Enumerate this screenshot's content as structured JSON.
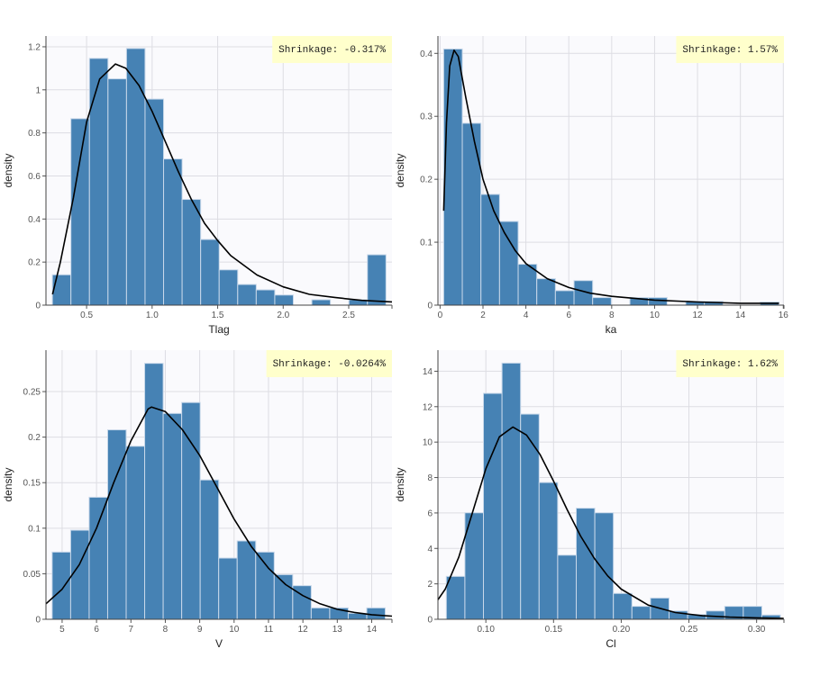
{
  "chart_data": [
    {
      "type": "bar",
      "xlabel": "Tlag",
      "ylabel": "density",
      "annotation": "Shrinkage: -0.317%",
      "xlim": [
        0.19,
        2.83
      ],
      "ylim": [
        0,
        1.25
      ],
      "xticks": [
        "0.5",
        "1.0",
        "1.5",
        "2.0",
        "2.5"
      ],
      "yticks": [
        "0",
        "0.2",
        "0.4",
        "0.6",
        "0.8",
        "1",
        "1.2"
      ],
      "grid": true,
      "bin_start": 0.239,
      "bin_width": 0.1414,
      "values": [
        0.141,
        0.866,
        1.146,
        1.051,
        1.192,
        0.957,
        0.679,
        0.491,
        0.305,
        0.164,
        0.096,
        0.071,
        0.047,
        0,
        0.025,
        0,
        0.025,
        0.234
      ],
      "curve": [
        [
          0.24,
          0.05
        ],
        [
          0.3,
          0.2
        ],
        [
          0.4,
          0.5
        ],
        [
          0.5,
          0.85
        ],
        [
          0.6,
          1.05
        ],
        [
          0.72,
          1.12
        ],
        [
          0.8,
          1.1
        ],
        [
          0.9,
          1.02
        ],
        [
          1.0,
          0.9
        ],
        [
          1.1,
          0.76
        ],
        [
          1.2,
          0.62
        ],
        [
          1.3,
          0.49
        ],
        [
          1.4,
          0.38
        ],
        [
          1.5,
          0.3
        ],
        [
          1.6,
          0.23
        ],
        [
          1.8,
          0.14
        ],
        [
          2.0,
          0.085
        ],
        [
          2.2,
          0.05
        ],
        [
          2.4,
          0.035
        ],
        [
          2.6,
          0.022
        ],
        [
          2.83,
          0.015
        ]
      ]
    },
    {
      "type": "bar",
      "xlabel": "ka",
      "ylabel": "density",
      "annotation": "Shrinkage: 1.57%",
      "xlim": [
        -0.1,
        16.03
      ],
      "ylim": [
        0,
        0.4276
      ],
      "xticks": [
        "0",
        "2",
        "4",
        "6",
        "8",
        "10",
        "12",
        "14",
        "16"
      ],
      "yticks": [
        "0",
        "0.1",
        "0.2",
        "0.3",
        "0.4"
      ],
      "grid": true,
      "bin_start": 0.168,
      "bin_width": 0.868,
      "values": [
        0.407,
        0.289,
        0.176,
        0.133,
        0.065,
        0.042,
        0.023,
        0.039,
        0.012,
        0,
        0.012,
        0.012,
        0,
        0.006,
        0.006,
        0,
        0,
        0.005
      ],
      "curve": [
        [
          0.17,
          0.15
        ],
        [
          0.3,
          0.29
        ],
        [
          0.45,
          0.38
        ],
        [
          0.65,
          0.405
        ],
        [
          0.85,
          0.395
        ],
        [
          1.2,
          0.33
        ],
        [
          1.6,
          0.26
        ],
        [
          2,
          0.2
        ],
        [
          2.5,
          0.15
        ],
        [
          3,
          0.115
        ],
        [
          3.5,
          0.087
        ],
        [
          4,
          0.066
        ],
        [
          5,
          0.042
        ],
        [
          6,
          0.028
        ],
        [
          7,
          0.019
        ],
        [
          8,
          0.014
        ],
        [
          10,
          0.008
        ],
        [
          12,
          0.005
        ],
        [
          14,
          0.003
        ],
        [
          15.8,
          0.003
        ]
      ]
    },
    {
      "type": "bar",
      "xlabel": "V",
      "ylabel": "density",
      "annotation": "Shrinkage: -0.0264%",
      "xlim": [
        4.53,
        14.59
      ],
      "ylim": [
        0,
        0.2955
      ],
      "xticks": [
        "5",
        "6",
        "7",
        "8",
        "9",
        "10",
        "11",
        "12",
        "13",
        "14"
      ],
      "yticks": [
        "0",
        "0.05",
        "0.1",
        "0.15",
        "0.2",
        "0.25"
      ],
      "grid": true,
      "bin_start": 4.71,
      "bin_width": 0.538,
      "values": [
        0.0738,
        0.0978,
        0.134,
        0.208,
        0.19,
        0.281,
        0.226,
        0.238,
        0.153,
        0.0672,
        0.086,
        0.0738,
        0.049,
        0.0369,
        0.0125,
        0.0125,
        0.0066,
        0.0125
      ],
      "curve": [
        [
          4.53,
          0.017
        ],
        [
          5,
          0.033
        ],
        [
          5.5,
          0.06
        ],
        [
          6,
          0.1
        ],
        [
          6.5,
          0.15
        ],
        [
          7,
          0.196
        ],
        [
          7.5,
          0.231
        ],
        [
          7.6,
          0.233
        ],
        [
          8,
          0.228
        ],
        [
          8.5,
          0.208
        ],
        [
          9,
          0.18
        ],
        [
          9.5,
          0.145
        ],
        [
          10,
          0.11
        ],
        [
          10.5,
          0.08
        ],
        [
          11,
          0.056
        ],
        [
          11.5,
          0.038
        ],
        [
          12,
          0.026
        ],
        [
          12.5,
          0.017
        ],
        [
          13,
          0.011
        ],
        [
          13.5,
          0.0075
        ],
        [
          14,
          0.005
        ],
        [
          14.59,
          0.0035
        ]
      ]
    },
    {
      "type": "bar",
      "xlabel": "Cl",
      "ylabel": "density",
      "annotation": "Shrinkage: 1.62%",
      "xlim": [
        0.0646,
        0.3202
      ],
      "ylim": [
        0,
        15.19
      ],
      "xticks": [
        "0.10",
        "0.15",
        "0.20",
        "0.25",
        "0.30"
      ],
      "yticks": [
        "0",
        "2",
        "4",
        "6",
        "8",
        "10",
        "12",
        "14"
      ],
      "grid": true,
      "bin_start": 0.0708,
      "bin_width": 0.01371,
      "values": [
        2.42,
        6.01,
        12.75,
        14.46,
        11.58,
        7.72,
        3.62,
        6.27,
        6.01,
        1.46,
        0.73,
        1.2,
        0.47,
        0.27,
        0.47,
        0.73,
        0.73,
        0.24
      ],
      "curve": [
        [
          0.0646,
          1.1
        ],
        [
          0.07,
          1.7
        ],
        [
          0.08,
          3.5
        ],
        [
          0.09,
          6.0
        ],
        [
          0.1,
          8.5
        ],
        [
          0.11,
          10.3
        ],
        [
          0.12,
          10.85
        ],
        [
          0.13,
          10.4
        ],
        [
          0.14,
          9.3
        ],
        [
          0.15,
          7.8
        ],
        [
          0.16,
          6.2
        ],
        [
          0.17,
          4.7
        ],
        [
          0.18,
          3.45
        ],
        [
          0.19,
          2.45
        ],
        [
          0.2,
          1.7
        ],
        [
          0.22,
          0.8
        ],
        [
          0.24,
          0.38
        ],
        [
          0.26,
          0.2
        ],
        [
          0.28,
          0.12
        ],
        [
          0.3,
          0.08
        ],
        [
          0.32,
          0.05
        ]
      ]
    }
  ],
  "colors": {
    "bar": "#4682b4",
    "bar_edge": "#c8d8ea",
    "curve": "#000000",
    "plot_bg": "#fafafd",
    "grid": "#dddde3",
    "annotation_bg": "#ffffcc"
  }
}
